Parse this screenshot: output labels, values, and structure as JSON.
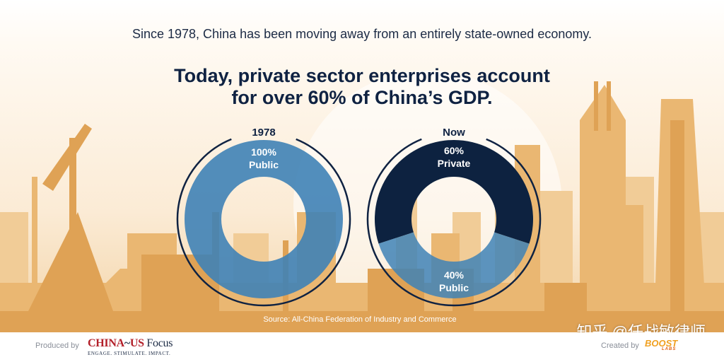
{
  "intro": "Since 1978, China has been moving away from an entirely state-owned economy.",
  "headline": {
    "line1": "Today, private sector enterprises account",
    "line2": "for over 60% of China’s GDP."
  },
  "chart_data": [
    {
      "type": "pie",
      "title": "1978",
      "categories": [
        "Public"
      ],
      "values": [
        100
      ],
      "labels": [
        {
          "percent": "100%",
          "name": "Public"
        }
      ]
    },
    {
      "type": "pie",
      "title": "Now",
      "categories": [
        "Private",
        "Public"
      ],
      "values": [
        60,
        40
      ],
      "labels": [
        {
          "percent": "60%",
          "name": "Private"
        },
        {
          "percent": "40%",
          "name": "Public"
        }
      ]
    }
  ],
  "colors": {
    "public": "#3f82b6",
    "private": "#0d2240",
    "ring": "#0f2242",
    "skyline": "#e6ac5e"
  },
  "source": "Source: All-China Federation of Industry and Commerce",
  "footer": {
    "produced_by": "Produced by",
    "logo_left_a": "CHINA",
    "logo_left_b": "US",
    "logo_left_c": " Focus",
    "logo_left_tagline": "ENGAGE. STIMULATE. IMPACT.",
    "created_by": "Created by",
    "logo_right": "BOOST",
    "logo_right_sub": "LABS"
  },
  "watermark": "知乎 @任战敏律师"
}
